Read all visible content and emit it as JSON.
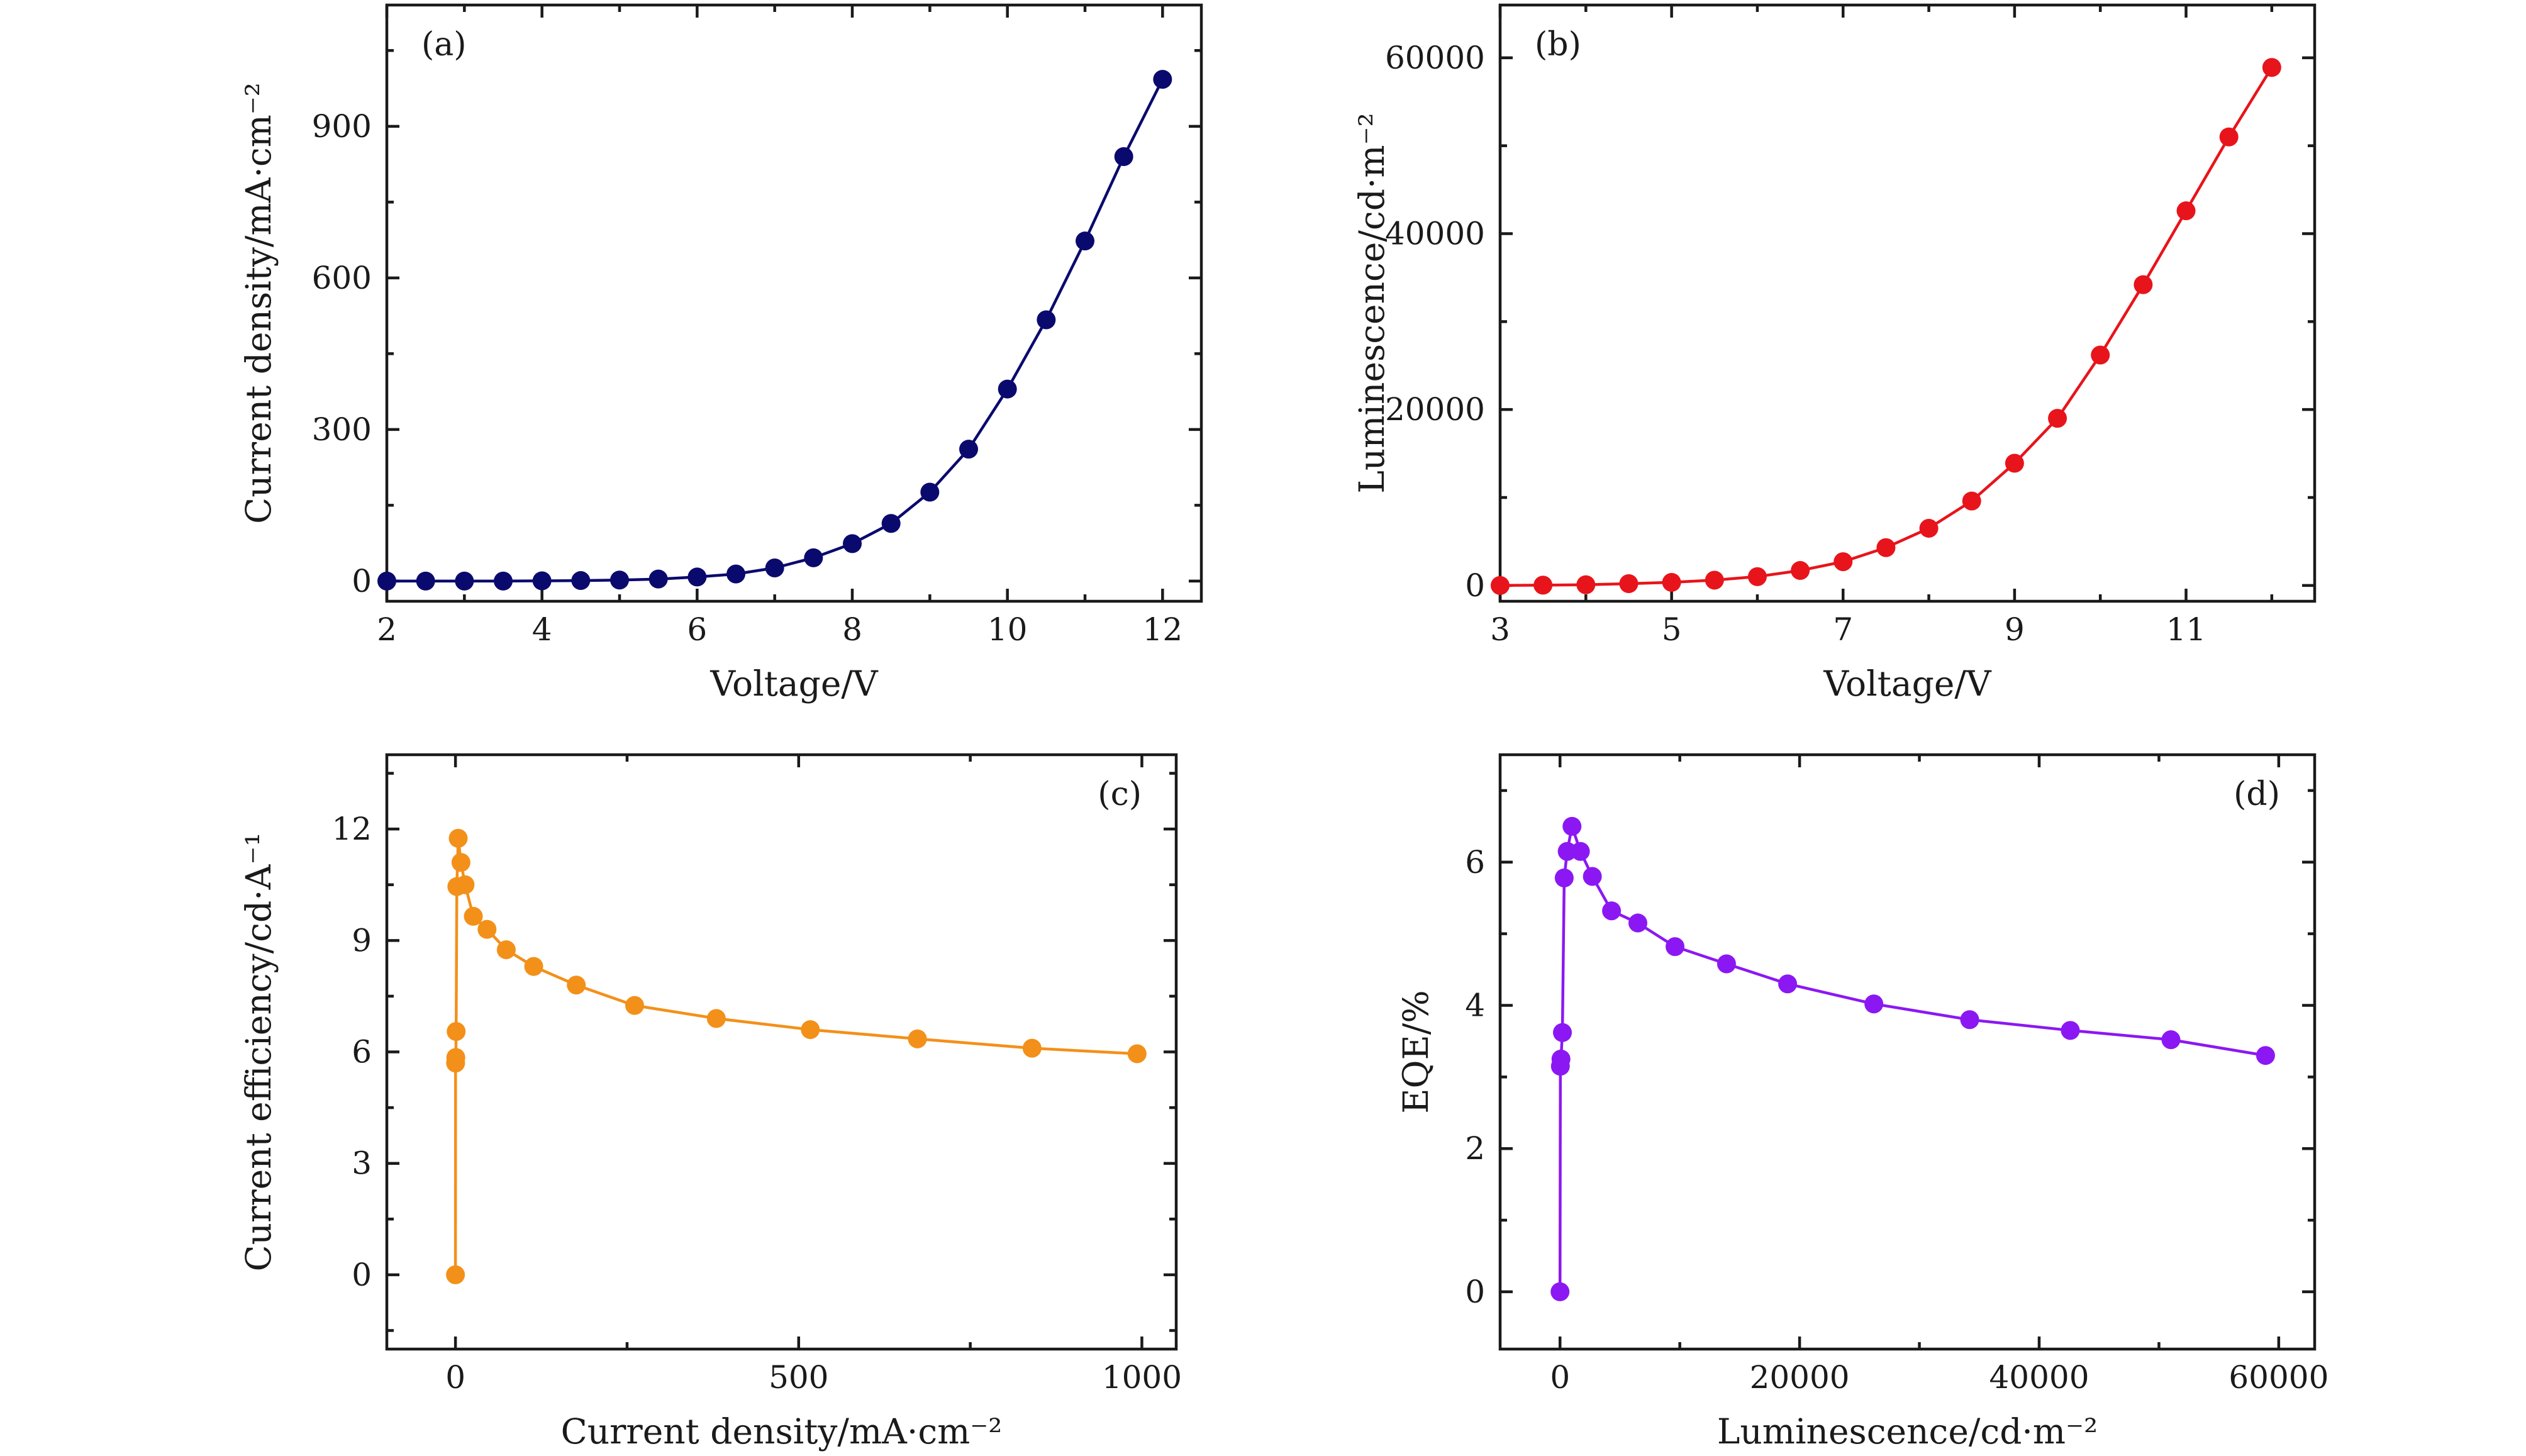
{
  "chart_data": [
    {
      "id": "a",
      "type": "line",
      "panel_label": "(a)",
      "xlabel": "Voltage/V",
      "ylabel": "Current density/mA·cm⁻²",
      "xlim": [
        2,
        12.5
      ],
      "ylim": [
        -40,
        1140
      ],
      "xticks": [
        2,
        4,
        6,
        8,
        10,
        12
      ],
      "yticks": [
        0,
        300,
        600,
        900
      ],
      "color": "#0a0a6e",
      "series": [
        {
          "x": [
            2,
            2.5,
            3,
            3.5,
            4,
            4.5,
            5,
            5.5,
            6,
            6.5,
            7,
            7.5,
            8,
            8.5,
            9,
            9.5,
            10,
            10.5,
            11,
            11.5,
            12
          ],
          "y": [
            0,
            0,
            0,
            0,
            0.5,
            1,
            2,
            4,
            8,
            14,
            26,
            46,
            74,
            114,
            176,
            261,
            380,
            517,
            673,
            840,
            993
          ]
        }
      ]
    },
    {
      "id": "b",
      "type": "line",
      "panel_label": "(b)",
      "xlabel": "Voltage/V",
      "ylabel": "Luminescence/cd·m⁻²",
      "xlim": [
        3,
        12.5
      ],
      "ylim": [
        -1800,
        66000
      ],
      "xticks": [
        3,
        5,
        7,
        9,
        11
      ],
      "yticks": [
        0,
        20000,
        40000,
        60000
      ],
      "color": "#e8141b",
      "series": [
        {
          "x": [
            3,
            3.5,
            4,
            4.5,
            5,
            5.5,
            6,
            6.5,
            7,
            7.5,
            8,
            8.5,
            9,
            9.5,
            10,
            10.5,
            11,
            11.5,
            12
          ],
          "y": [
            0,
            30,
            80,
            200,
            350,
            600,
            1000,
            1700,
            2700,
            4300,
            6500,
            9600,
            13900,
            19000,
            26200,
            34200,
            42600,
            51000,
            58900
          ]
        }
      ]
    },
    {
      "id": "c",
      "type": "line",
      "panel_label": "(c)",
      "xlabel": "Current density/mA·cm⁻²",
      "ylabel": "Current efficiency/cd·A⁻¹",
      "xlim": [
        -100,
        1050
      ],
      "ylim": [
        -2,
        14
      ],
      "xticks": [
        0,
        500,
        1000
      ],
      "yticks": [
        0,
        3,
        6,
        9,
        12
      ],
      "color": "#f39019",
      "series": [
        {
          "x": [
            0,
            0.2,
            0.5,
            1,
            2,
            4,
            8,
            14,
            26,
            46,
            74,
            114,
            176,
            261,
            380,
            517,
            673,
            840,
            993
          ],
          "y": [
            0,
            5.7,
            5.85,
            6.55,
            10.45,
            11.75,
            11.1,
            10.5,
            9.65,
            9.3,
            8.75,
            8.3,
            7.8,
            7.25,
            6.9,
            6.6,
            6.35,
            6.1,
            5.95
          ]
        }
      ]
    },
    {
      "id": "d",
      "type": "line",
      "panel_label": "(d)",
      "xlabel": "Luminescence/cd·m⁻²",
      "ylabel": "EQE/%",
      "xlim": [
        -5000,
        63000
      ],
      "ylim": [
        -0.8,
        7.5
      ],
      "xticks": [
        0,
        20000,
        40000,
        60000
      ],
      "yticks": [
        0,
        2,
        4,
        6
      ],
      "color": "#8b18f2",
      "series": [
        {
          "x": [
            0,
            30,
            80,
            200,
            350,
            600,
            1000,
            1700,
            2700,
            4300,
            6500,
            9600,
            13900,
            19000,
            26200,
            34200,
            42600,
            51000,
            58900
          ],
          "y": [
            0,
            3.15,
            3.25,
            3.62,
            5.78,
            6.15,
            6.5,
            6.15,
            5.8,
            5.32,
            5.15,
            4.82,
            4.58,
            4.3,
            4.02,
            3.8,
            3.65,
            3.52,
            3.3
          ]
        }
      ]
    }
  ]
}
